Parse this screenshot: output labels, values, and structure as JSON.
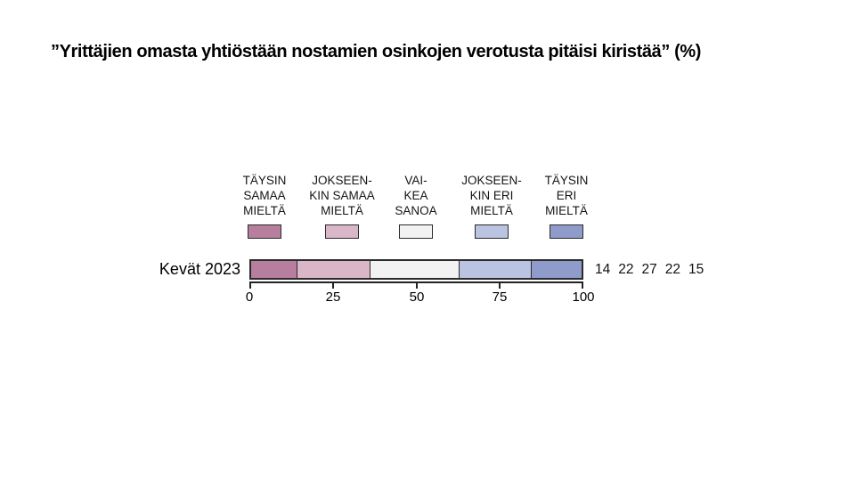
{
  "title": "”Yrittäjien omasta yhtiöstään nostamien osinkojen verotusta pitäisi kiristää” (%)",
  "chart_data": {
    "type": "bar",
    "subtype": "horizontal-stacked",
    "title": "”Yrittäjien omasta yhtiöstään nostamien osinkojen verotusta pitäisi kiristää” (%)",
    "row_label": "Kevät 2023",
    "categories": [
      "TÄYSIN SAMAA MIELTÄ",
      "JOKSEENKIN SAMAA MIELTÄ",
      "VAIKEA SANOA",
      "JOKSEENKIN ERI MIELTÄ",
      "TÄYSIN ERI MIELTÄ"
    ],
    "values": [
      14,
      22,
      27,
      22,
      15
    ],
    "colors": [
      "#b77e9e",
      "#d9b6c8",
      "#f2f2f2",
      "#bac3e0",
      "#8e9bcb"
    ],
    "xlim": [
      0,
      100
    ],
    "x_ticks": [
      "0",
      "25",
      "50",
      "75",
      "100"
    ],
    "legend_position": "top",
    "grid": false
  },
  "legend": {
    "items": [
      {
        "label": "TÄYSIN SAMAA MIELTÄ",
        "label_multiline": "TÄYSIN\nSAMAA\nMIELTÄ",
        "color": "#b77e9e"
      },
      {
        "label": "JOKSEENKIN SAMAA MIELTÄ",
        "label_multiline": "JOKSEEN-\nKIN SAMAA\nMIELTÄ",
        "color": "#d9b6c8"
      },
      {
        "label": "VAIKEA SANOA",
        "label_multiline": "VAI-\nKEA\nSANOA",
        "color": "#f2f2f2"
      },
      {
        "label": "JOKSEENKIN ERI MIELTÄ",
        "label_multiline": "JOKSEEN-\nKIN ERI\nMIELTÄ",
        "color": "#bac3e0"
      },
      {
        "label": "TÄYSIN ERI MIELTÄ",
        "label_multiline": "TÄYSIN\nERI\nMIELTÄ",
        "color": "#8e9bcb"
      }
    ]
  }
}
